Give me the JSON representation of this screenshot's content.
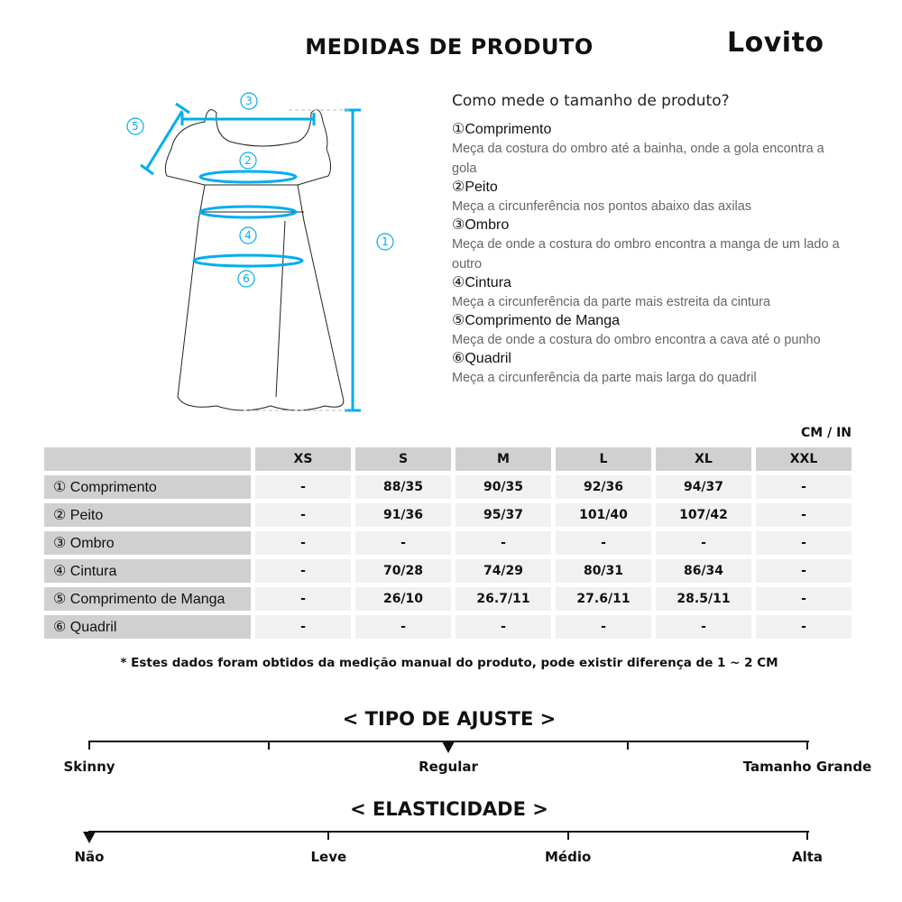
{
  "header": {
    "title": "MEDIDAS DE PRODUTO",
    "brand": "Lovito"
  },
  "diagram": {
    "markers": [
      "①",
      "②",
      "③",
      "④",
      "⑤",
      "⑥"
    ],
    "accent": "#00aeef"
  },
  "guide": {
    "question": "Como mede o tamanho de produto?",
    "items": [
      {
        "title": "①Comprimento",
        "desc": "Meça da costura do ombro até a bainha, onde a gola encontra a gola"
      },
      {
        "title": "②Peito",
        "desc": "Meça a circunferência nos pontos abaixo das axilas"
      },
      {
        "title": "③Ombro",
        "desc": "Meça de onde a costura do ombro encontra a manga de um lado a outro"
      },
      {
        "title": "④Cintura",
        "desc": "Meça a circunferência da parte mais estreita da cintura"
      },
      {
        "title": "⑤Comprimento de Manga",
        "desc": "Meça de onde a costura do ombro encontra a cava até o punho"
      },
      {
        "title": "⑥Quadril",
        "desc": "Meça a circunferência da parte mais larga do quadril"
      }
    ]
  },
  "table": {
    "unit": "CM / IN",
    "sizes": [
      "XS",
      "S",
      "M",
      "L",
      "XL",
      "XXL"
    ],
    "rows": [
      {
        "label": "① Comprimento",
        "values": [
          "-",
          "88/35",
          "90/35",
          "92/36",
          "94/37",
          "-"
        ]
      },
      {
        "label": "② Peito",
        "values": [
          "-",
          "91/36",
          "95/37",
          "101/40",
          "107/42",
          "-"
        ]
      },
      {
        "label": "③ Ombro",
        "values": [
          "-",
          "-",
          "-",
          "-",
          "-",
          "-"
        ]
      },
      {
        "label": "④ Cintura",
        "values": [
          "-",
          "70/28",
          "74/29",
          "80/31",
          "86/34",
          "-"
        ]
      },
      {
        "label": "⑤ Comprimento de Manga",
        "values": [
          "-",
          "26/10",
          "26.7/11",
          "27.6/11",
          "28.5/11",
          "-"
        ]
      },
      {
        "label": "⑥ Quadril",
        "values": [
          "-",
          "-",
          "-",
          "-",
          "-",
          "-"
        ]
      }
    ]
  },
  "note": "* Estes dados foram obtidos da medição manual do produto, pode existir diferença de 1 ~ 2 CM",
  "fit": {
    "title": "< TIPO DE AJUSTE >",
    "labels": [
      "Skinny",
      "Regular",
      "Tamanho Grande"
    ],
    "selected": "Regular",
    "selected_fraction": 0.5
  },
  "elasticity": {
    "title": "< ELASTICIDADE >",
    "labels": [
      "Não",
      "Leve",
      "Médio",
      "Alta"
    ],
    "selected": "Não",
    "selected_fraction": 0
  }
}
